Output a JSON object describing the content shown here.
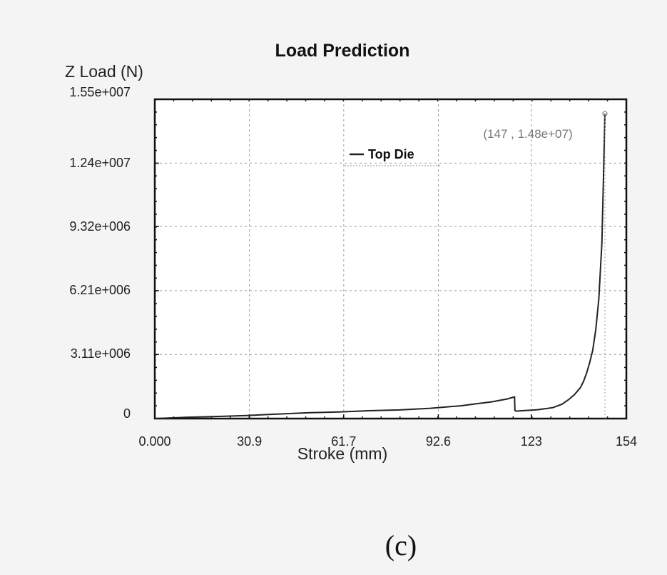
{
  "chart_data": {
    "type": "line",
    "title": "Load Prediction",
    "xlabel": "Stroke (mm)",
    "ylabel": "Z Load (N)",
    "xlim": [
      0,
      154
    ],
    "ylim": [
      0,
      15500000
    ],
    "x_ticks": [
      0,
      30.9,
      61.7,
      92.6,
      123,
      154
    ],
    "x_tick_labels": [
      "0.000",
      "30.9",
      "61.7",
      "92.6",
      "123",
      "154"
    ],
    "y_ticks": [
      0,
      3110000,
      6210000,
      9320000,
      12400000,
      15500000
    ],
    "y_tick_labels": [
      "0",
      "3.11e+006",
      "6.21e+006",
      "9.32e+006",
      "1.24e+007",
      "1.55e+007"
    ],
    "grid": true,
    "legend_position": "top-center",
    "series": [
      {
        "name": "Top Die",
        "x": [
          0,
          10,
          20,
          30,
          40,
          50,
          60,
          70,
          80,
          90,
          100,
          105,
          110,
          115,
          117.5,
          117.6,
          118,
          120,
          125,
          130,
          133,
          135,
          137,
          139,
          140,
          141,
          142,
          143,
          144,
          145,
          146,
          146.5,
          147
        ],
        "y": [
          0,
          60000,
          100000,
          150000,
          220000,
          280000,
          320000,
          380000,
          420000,
          500000,
          620000,
          720000,
          810000,
          950000,
          1050000,
          400000,
          360000,
          380000,
          430000,
          530000,
          700000,
          900000,
          1150000,
          1500000,
          1800000,
          2200000,
          2700000,
          3300000,
          4300000,
          5800000,
          8500000,
          11500000,
          14800000
        ]
      }
    ],
    "annotations": [
      {
        "text": "(147 , 1.48e+07)",
        "x": 147,
        "y": 14800000
      }
    ],
    "caption": "(c)"
  }
}
